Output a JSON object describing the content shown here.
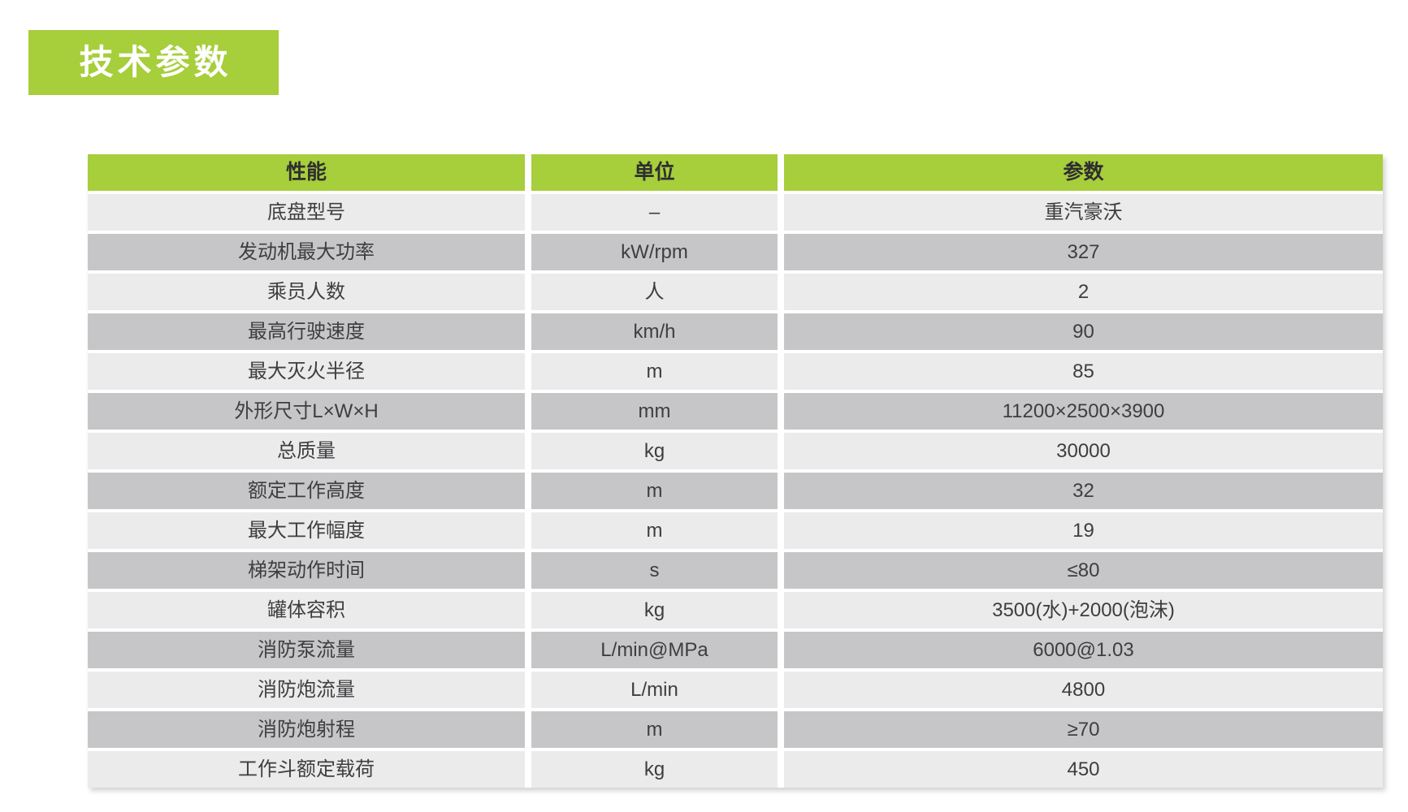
{
  "colors": {
    "page_background": "#ffffff",
    "accent_green": "#a7ce3b",
    "row_light": "#ebebec",
    "row_dark": "#c6c6c8",
    "text_dark": "#3e3e40",
    "header_text": "#2e2e30",
    "title_text": "#ffffff"
  },
  "title_badge": {
    "label": "技术参数"
  },
  "table": {
    "headers": [
      "性能",
      "单位",
      "参数"
    ],
    "rows": [
      {
        "name": "底盘型号",
        "unit": "–",
        "value": "重汽豪沃"
      },
      {
        "name": "发动机最大功率",
        "unit": "kW/rpm",
        "value": "327"
      },
      {
        "name": "乘员人数",
        "unit": "人",
        "value": "2"
      },
      {
        "name": "最高行驶速度",
        "unit": "km/h",
        "value": "90"
      },
      {
        "name": "最大灭火半径",
        "unit": "m",
        "value": "85"
      },
      {
        "name": "外形尺寸L×W×H",
        "unit": "mm",
        "value": "11200×2500×3900"
      },
      {
        "name": "总质量",
        "unit": "kg",
        "value": "30000"
      },
      {
        "name": "额定工作高度",
        "unit": "m",
        "value": "32"
      },
      {
        "name": "最大工作幅度",
        "unit": "m",
        "value": "19"
      },
      {
        "name": "梯架动作时间",
        "unit": "s",
        "value": "≤80"
      },
      {
        "name": "罐体容积",
        "unit": "kg",
        "value": "3500(水)+2000(泡沫)"
      },
      {
        "name": "消防泵流量",
        "unit": "L/min@MPa",
        "value": "6000@1.03"
      },
      {
        "name": "消防炮流量",
        "unit": "L/min",
        "value": "4800"
      },
      {
        "name": "消防炮射程",
        "unit": "m",
        "value": "≥70"
      },
      {
        "name": "工作斗额定载荷",
        "unit": "kg",
        "value": "450"
      }
    ]
  }
}
